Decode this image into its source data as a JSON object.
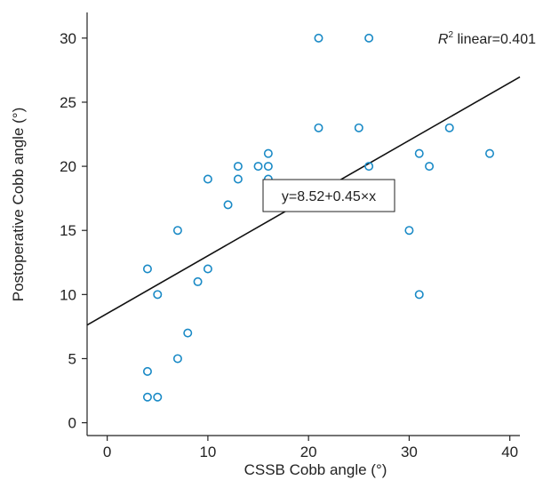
{
  "chart_data": {
    "type": "scatter",
    "xlabel": "CSSB Cobb angle (°)",
    "ylabel": "Postoperative Cobb angle (°)",
    "xlim": [
      -2,
      41
    ],
    "ylim": [
      -1,
      32
    ],
    "xticks": [
      0,
      10,
      20,
      30,
      40
    ],
    "yticks": [
      0,
      5,
      10,
      15,
      20,
      25,
      30
    ],
    "grid": false,
    "marker_color": "#1a8ac6",
    "line_color": "#111111",
    "points": [
      {
        "x": 4,
        "y": 12
      },
      {
        "x": 4,
        "y": 4
      },
      {
        "x": 4,
        "y": 2
      },
      {
        "x": 5,
        "y": 2
      },
      {
        "x": 5,
        "y": 10
      },
      {
        "x": 7,
        "y": 15
      },
      {
        "x": 7,
        "y": 5
      },
      {
        "x": 8,
        "y": 7
      },
      {
        "x": 9,
        "y": 11
      },
      {
        "x": 10,
        "y": 12
      },
      {
        "x": 10,
        "y": 19
      },
      {
        "x": 12,
        "y": 17
      },
      {
        "x": 13,
        "y": 19
      },
      {
        "x": 13,
        "y": 20
      },
      {
        "x": 15,
        "y": 20
      },
      {
        "x": 16,
        "y": 21
      },
      {
        "x": 16,
        "y": 20
      },
      {
        "x": 16,
        "y": 19
      },
      {
        "x": 21,
        "y": 30
      },
      {
        "x": 21,
        "y": 23
      },
      {
        "x": 25,
        "y": 23
      },
      {
        "x": 26,
        "y": 30
      },
      {
        "x": 26,
        "y": 20
      },
      {
        "x": 30,
        "y": 15
      },
      {
        "x": 31,
        "y": 21
      },
      {
        "x": 31,
        "y": 10
      },
      {
        "x": 32,
        "y": 20
      },
      {
        "x": 34,
        "y": 23
      },
      {
        "x": 38,
        "y": 21
      }
    ],
    "fit": {
      "intercept": 8.52,
      "slope": 0.45
    },
    "equation_label": "y=8.52+0.45×x",
    "r2_symbol": "R",
    "r2_superscript": "2",
    "r2_text": " linear=0.401"
  }
}
